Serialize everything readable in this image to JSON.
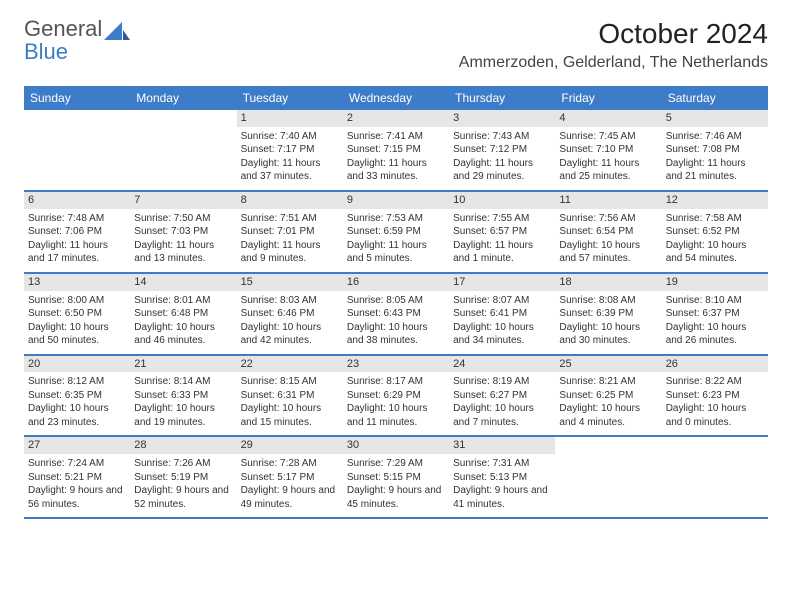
{
  "logo": {
    "text1": "General",
    "text2": "Blue"
  },
  "title": "October 2024",
  "location": "Ammerzoden, Gelderland, The Netherlands",
  "colors": {
    "accent": "#3d7cc9",
    "header_bg": "#3d7cc9",
    "daynum_bg": "#e6e6e6",
    "page_bg": "#ffffff",
    "text": "#333333"
  },
  "day_names": [
    "Sunday",
    "Monday",
    "Tuesday",
    "Wednesday",
    "Thursday",
    "Friday",
    "Saturday"
  ],
  "weeks": [
    [
      {
        "day": "",
        "sunrise": "",
        "sunset": "",
        "daylight": ""
      },
      {
        "day": "",
        "sunrise": "",
        "sunset": "",
        "daylight": ""
      },
      {
        "day": "1",
        "sunrise": "Sunrise: 7:40 AM",
        "sunset": "Sunset: 7:17 PM",
        "daylight": "Daylight: 11 hours and 37 minutes."
      },
      {
        "day": "2",
        "sunrise": "Sunrise: 7:41 AM",
        "sunset": "Sunset: 7:15 PM",
        "daylight": "Daylight: 11 hours and 33 minutes."
      },
      {
        "day": "3",
        "sunrise": "Sunrise: 7:43 AM",
        "sunset": "Sunset: 7:12 PM",
        "daylight": "Daylight: 11 hours and 29 minutes."
      },
      {
        "day": "4",
        "sunrise": "Sunrise: 7:45 AM",
        "sunset": "Sunset: 7:10 PM",
        "daylight": "Daylight: 11 hours and 25 minutes."
      },
      {
        "day": "5",
        "sunrise": "Sunrise: 7:46 AM",
        "sunset": "Sunset: 7:08 PM",
        "daylight": "Daylight: 11 hours and 21 minutes."
      }
    ],
    [
      {
        "day": "6",
        "sunrise": "Sunrise: 7:48 AM",
        "sunset": "Sunset: 7:06 PM",
        "daylight": "Daylight: 11 hours and 17 minutes."
      },
      {
        "day": "7",
        "sunrise": "Sunrise: 7:50 AM",
        "sunset": "Sunset: 7:03 PM",
        "daylight": "Daylight: 11 hours and 13 minutes."
      },
      {
        "day": "8",
        "sunrise": "Sunrise: 7:51 AM",
        "sunset": "Sunset: 7:01 PM",
        "daylight": "Daylight: 11 hours and 9 minutes."
      },
      {
        "day": "9",
        "sunrise": "Sunrise: 7:53 AM",
        "sunset": "Sunset: 6:59 PM",
        "daylight": "Daylight: 11 hours and 5 minutes."
      },
      {
        "day": "10",
        "sunrise": "Sunrise: 7:55 AM",
        "sunset": "Sunset: 6:57 PM",
        "daylight": "Daylight: 11 hours and 1 minute."
      },
      {
        "day": "11",
        "sunrise": "Sunrise: 7:56 AM",
        "sunset": "Sunset: 6:54 PM",
        "daylight": "Daylight: 10 hours and 57 minutes."
      },
      {
        "day": "12",
        "sunrise": "Sunrise: 7:58 AM",
        "sunset": "Sunset: 6:52 PM",
        "daylight": "Daylight: 10 hours and 54 minutes."
      }
    ],
    [
      {
        "day": "13",
        "sunrise": "Sunrise: 8:00 AM",
        "sunset": "Sunset: 6:50 PM",
        "daylight": "Daylight: 10 hours and 50 minutes."
      },
      {
        "day": "14",
        "sunrise": "Sunrise: 8:01 AM",
        "sunset": "Sunset: 6:48 PM",
        "daylight": "Daylight: 10 hours and 46 minutes."
      },
      {
        "day": "15",
        "sunrise": "Sunrise: 8:03 AM",
        "sunset": "Sunset: 6:46 PM",
        "daylight": "Daylight: 10 hours and 42 minutes."
      },
      {
        "day": "16",
        "sunrise": "Sunrise: 8:05 AM",
        "sunset": "Sunset: 6:43 PM",
        "daylight": "Daylight: 10 hours and 38 minutes."
      },
      {
        "day": "17",
        "sunrise": "Sunrise: 8:07 AM",
        "sunset": "Sunset: 6:41 PM",
        "daylight": "Daylight: 10 hours and 34 minutes."
      },
      {
        "day": "18",
        "sunrise": "Sunrise: 8:08 AM",
        "sunset": "Sunset: 6:39 PM",
        "daylight": "Daylight: 10 hours and 30 minutes."
      },
      {
        "day": "19",
        "sunrise": "Sunrise: 8:10 AM",
        "sunset": "Sunset: 6:37 PM",
        "daylight": "Daylight: 10 hours and 26 minutes."
      }
    ],
    [
      {
        "day": "20",
        "sunrise": "Sunrise: 8:12 AM",
        "sunset": "Sunset: 6:35 PM",
        "daylight": "Daylight: 10 hours and 23 minutes."
      },
      {
        "day": "21",
        "sunrise": "Sunrise: 8:14 AM",
        "sunset": "Sunset: 6:33 PM",
        "daylight": "Daylight: 10 hours and 19 minutes."
      },
      {
        "day": "22",
        "sunrise": "Sunrise: 8:15 AM",
        "sunset": "Sunset: 6:31 PM",
        "daylight": "Daylight: 10 hours and 15 minutes."
      },
      {
        "day": "23",
        "sunrise": "Sunrise: 8:17 AM",
        "sunset": "Sunset: 6:29 PM",
        "daylight": "Daylight: 10 hours and 11 minutes."
      },
      {
        "day": "24",
        "sunrise": "Sunrise: 8:19 AM",
        "sunset": "Sunset: 6:27 PM",
        "daylight": "Daylight: 10 hours and 7 minutes."
      },
      {
        "day": "25",
        "sunrise": "Sunrise: 8:21 AM",
        "sunset": "Sunset: 6:25 PM",
        "daylight": "Daylight: 10 hours and 4 minutes."
      },
      {
        "day": "26",
        "sunrise": "Sunrise: 8:22 AM",
        "sunset": "Sunset: 6:23 PM",
        "daylight": "Daylight: 10 hours and 0 minutes."
      }
    ],
    [
      {
        "day": "27",
        "sunrise": "Sunrise: 7:24 AM",
        "sunset": "Sunset: 5:21 PM",
        "daylight": "Daylight: 9 hours and 56 minutes."
      },
      {
        "day": "28",
        "sunrise": "Sunrise: 7:26 AM",
        "sunset": "Sunset: 5:19 PM",
        "daylight": "Daylight: 9 hours and 52 minutes."
      },
      {
        "day": "29",
        "sunrise": "Sunrise: 7:28 AM",
        "sunset": "Sunset: 5:17 PM",
        "daylight": "Daylight: 9 hours and 49 minutes."
      },
      {
        "day": "30",
        "sunrise": "Sunrise: 7:29 AM",
        "sunset": "Sunset: 5:15 PM",
        "daylight": "Daylight: 9 hours and 45 minutes."
      },
      {
        "day": "31",
        "sunrise": "Sunrise: 7:31 AM",
        "sunset": "Sunset: 5:13 PM",
        "daylight": "Daylight: 9 hours and 41 minutes."
      },
      {
        "day": "",
        "sunrise": "",
        "sunset": "",
        "daylight": ""
      },
      {
        "day": "",
        "sunrise": "",
        "sunset": "",
        "daylight": ""
      }
    ]
  ]
}
